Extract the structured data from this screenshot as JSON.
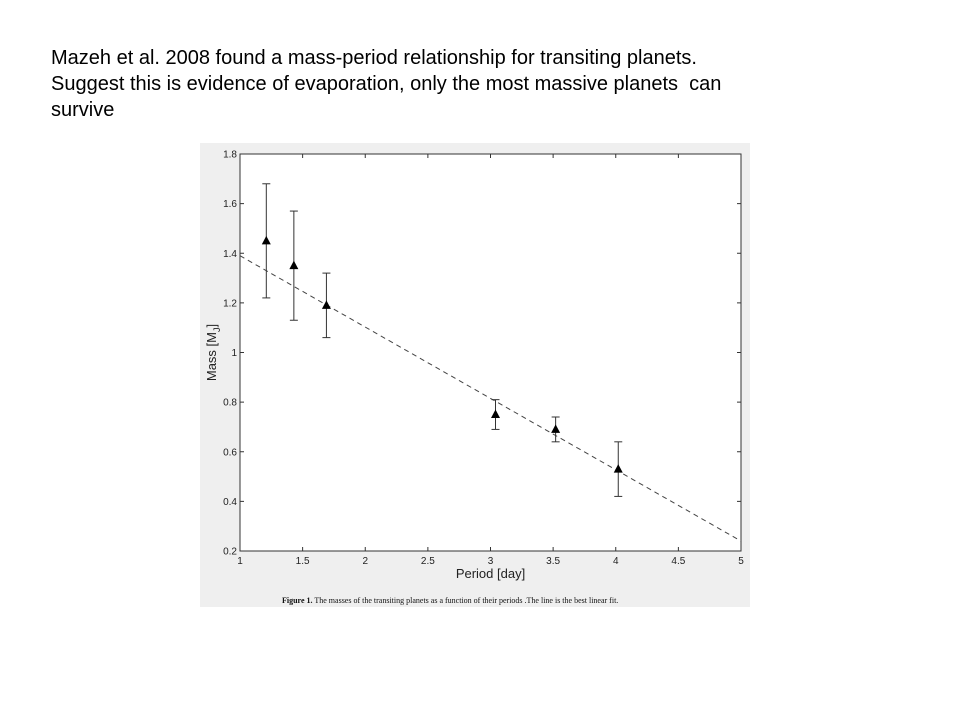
{
  "slide": {
    "lines": [
      "Mazeh et al. 2008 found a mass-period relationship for transiting planets.",
      "Suggest this is evidence of evaporation, only the most massive planets  can",
      "survive"
    ]
  },
  "figure": {
    "caption_label": "Figure 1.",
    "caption_text": " The masses of the transiting planets as a function of their periods .The line is the best linear fit."
  },
  "chart_data": {
    "type": "scatter",
    "xlabel": "Period [day]",
    "ylabel": "Mass [M",
    "ylabel_subscript": "J",
    "ylabel_suffix": "]",
    "xlim": [
      1,
      5
    ],
    "ylim": [
      0.2,
      1.8
    ],
    "xticks": [
      "1",
      "1.5",
      "2",
      "2.5",
      "3",
      "3.5",
      "4",
      "4.5",
      "5"
    ],
    "yticks": [
      "0.2",
      "0.4",
      "0.6",
      "0.8",
      "1",
      "1.2",
      "1.4",
      "1.6",
      "1.8"
    ],
    "points": [
      {
        "x": 1.21,
        "y": 1.45,
        "err_low": 1.22,
        "err_high": 1.68
      },
      {
        "x": 1.43,
        "y": 1.35,
        "err_low": 1.13,
        "err_high": 1.57
      },
      {
        "x": 1.69,
        "y": 1.19,
        "err_low": 1.06,
        "err_high": 1.32
      },
      {
        "x": 3.04,
        "y": 0.75,
        "err_low": 0.69,
        "err_high": 0.81
      },
      {
        "x": 3.52,
        "y": 0.69,
        "err_low": 0.64,
        "err_high": 0.74
      },
      {
        "x": 4.02,
        "y": 0.53,
        "err_low": 0.42,
        "err_high": 0.64
      }
    ],
    "fit_line": {
      "x": [
        1,
        5
      ],
      "y": [
        1.39,
        0.24
      ],
      "style": "dashed"
    },
    "marker": "triangle",
    "grid": false
  }
}
